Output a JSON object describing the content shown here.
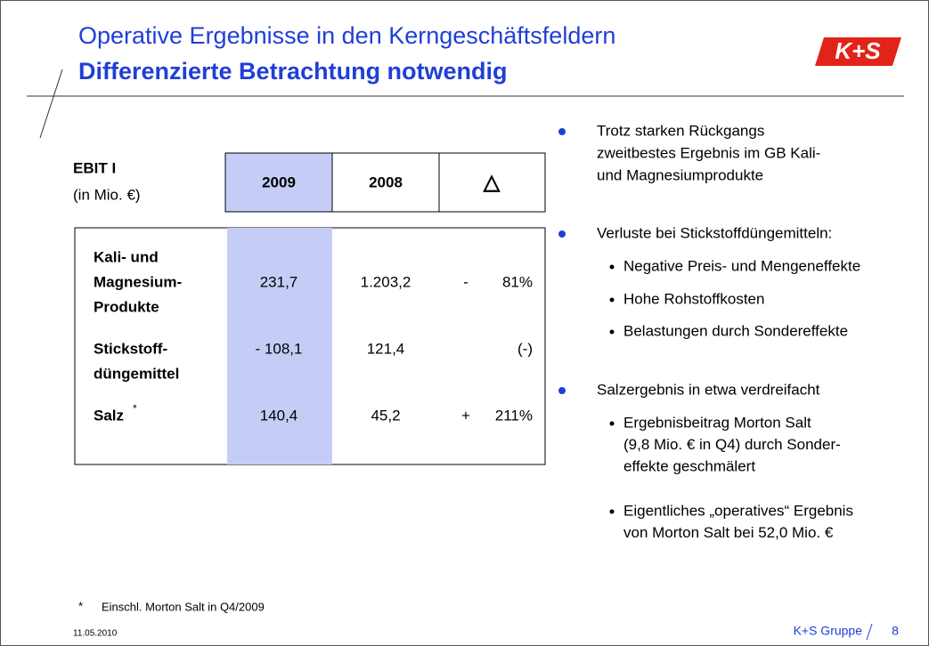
{
  "header": {
    "title": "Operative Ergebnisse in den Kerngeschäftsfeldern",
    "subtitle": "Differenzierte Betrachtung notwendig",
    "logo": "K+S"
  },
  "table": {
    "label": "EBIT I",
    "unit": "(in Mio. €)",
    "columns": [
      "2009",
      "2008",
      "△"
    ],
    "rows": [
      {
        "label": [
          "Kali- und",
          "Magnesium-",
          "Produkte"
        ],
        "cells": [
          "231,7",
          "1.203,2"
        ],
        "delta_sign": "-",
        "delta": "81%"
      },
      {
        "label": [
          "Stickstoff-",
          "düngemittel"
        ],
        "cells": [
          "- 108,1",
          "121,4"
        ],
        "delta": "(-)"
      },
      {
        "label": [
          "Salz"
        ],
        "marker": "*",
        "cells": [
          "140,4",
          "45,2"
        ],
        "delta_sign": "+",
        "delta": "211%"
      }
    ]
  },
  "bullets": [
    {
      "text": [
        "Trotz starken Rückgangs",
        "zweitbestes Ergebnis im GB Kali-",
        "und Magnesiumprodukte"
      ],
      "sub": []
    },
    {
      "text": [
        "Verluste bei Stickstoffdüngemitteln:"
      ],
      "sub": [
        [
          "Negative Preis- und Mengeneffekte"
        ],
        [
          "Hohe Rohstoffkosten"
        ],
        [
          "Belastungen durch Sondereffekte"
        ]
      ]
    },
    {
      "text": [
        "Salzergebnis in etwa verdreifacht"
      ],
      "sub": [
        [
          "Ergebnisbeitrag Morton Salt",
          "(9,8 Mio. € in Q4) durch Sonder-",
          "effekte geschmälert"
        ],
        [
          "Eigentliches „operatives“ Ergebnis",
          "von Morton Salt bei 52,0 Mio. €"
        ]
      ]
    }
  ],
  "footer": {
    "note_marker": "*",
    "note": "Einschl. Morton Salt in Q4/2009",
    "date": "11.05.2010",
    "company": "K+S Gruppe",
    "page": "8"
  }
}
